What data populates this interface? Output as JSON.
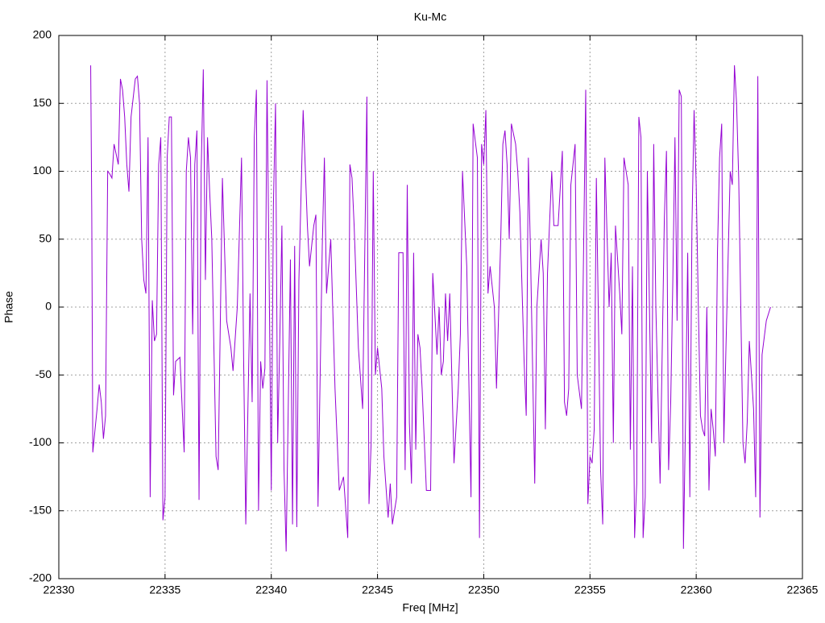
{
  "chart_data": {
    "type": "line",
    "title": "Ku-Mc",
    "x_label": "Freq [MHz]",
    "y_label": "Phase",
    "xlim": [
      22330,
      22365
    ],
    "xticks": [
      22330,
      22335,
      22340,
      22345,
      22350,
      22355,
      22360,
      22365
    ],
    "ylim": [
      -200,
      200
    ],
    "yticks": [
      -200,
      -150,
      -100,
      -50,
      0,
      50,
      100,
      150,
      200
    ],
    "grid": true,
    "series": [
      {
        "color": "#9400d3",
        "x": [
          22331.5,
          22331.55,
          22331.6,
          22331.8,
          22331.9,
          22332.0,
          22332.1,
          22332.2,
          22332.3,
          22332.4,
          22332.5,
          22332.6,
          22332.8,
          22332.9,
          22333.0,
          22333.1,
          22333.2,
          22333.3,
          22333.4,
          22333.6,
          22333.7,
          22333.8,
          22333.9,
          22334.0,
          22334.1,
          22334.2,
          22334.3,
          22334.4,
          22334.5,
          22334.6,
          22334.7,
          22334.8,
          22334.9,
          22335.0,
          22335.1,
          22335.2,
          22335.3,
          22335.4,
          22335.5,
          22335.7,
          22335.9,
          22336.0,
          22336.1,
          22336.2,
          22336.3,
          22336.4,
          22336.5,
          22336.6,
          22336.7,
          22336.8,
          22336.9,
          22337.0,
          22337.1,
          22337.2,
          22337.4,
          22337.5,
          22337.7,
          22337.9,
          22338.1,
          22338.2,
          22338.4,
          22338.6,
          22338.7,
          22338.8,
          22339.0,
          22339.1,
          22339.2,
          22339.3,
          22339.4,
          22339.5,
          22339.6,
          22339.7,
          22339.8,
          22339.9,
          22340.0,
          22340.1,
          22340.2,
          22340.3,
          22340.4,
          22340.5,
          22340.6,
          22340.7,
          22340.9,
          22341.0,
          22341.1,
          22341.2,
          22341.3,
          22341.5,
          22341.7,
          22341.8,
          22342.0,
          22342.1,
          22342.2,
          22342.4,
          22342.5,
          22342.6,
          22342.8,
          22343.0,
          22343.2,
          22343.4,
          22343.6,
          22343.7,
          22343.8,
          22343.9,
          22344.1,
          22344.3,
          22344.5,
          22344.6,
          22344.7,
          22344.8,
          22344.9,
          22345.0,
          22345.2,
          22345.3,
          22345.5,
          22345.6,
          22345.7,
          22345.8,
          22345.9,
          22346.0,
          22346.2,
          22346.3,
          22346.4,
          22346.5,
          22346.6,
          22346.7,
          22346.8,
          22346.9,
          22347.0,
          22347.1,
          22347.3,
          22347.5,
          22347.6,
          22347.8,
          22347.9,
          22348.0,
          22348.1,
          22348.2,
          22348.3,
          22348.4,
          22348.6,
          22348.8,
          22348.9,
          22349.0,
          22349.2,
          22349.4,
          22349.5,
          22349.7,
          22349.8,
          22349.9,
          22350.0,
          22350.1,
          22350.2,
          22350.3,
          22350.5,
          22350.6,
          22350.8,
          22350.9,
          22351.0,
          22351.1,
          22351.2,
          22351.3,
          22351.5,
          22351.6,
          22351.7,
          22351.9,
          22352.0,
          22352.1,
          22352.2,
          22352.4,
          22352.5,
          22352.7,
          22352.8,
          22352.9,
          22353.0,
          22353.2,
          22353.3,
          22353.5,
          22353.7,
          22353.8,
          22353.9,
          22354.0,
          22354.1,
          22354.3,
          22354.4,
          22354.6,
          22354.8,
          22354.9,
          22355.0,
          22355.1,
          22355.2,
          22355.3,
          22355.5,
          22355.6,
          22355.7,
          22355.9,
          22356.0,
          22356.1,
          22356.2,
          22356.4,
          22356.5,
          22356.6,
          22356.8,
          22356.9,
          22357.0,
          22357.1,
          22357.2,
          22357.3,
          22357.4,
          22357.5,
          22357.6,
          22357.7,
          22357.9,
          22358.0,
          22358.1,
          22358.3,
          22358.5,
          22358.6,
          22358.7,
          22358.8,
          22358.9,
          22359.0,
          22359.1,
          22359.2,
          22359.3,
          22359.4,
          22359.5,
          22359.6,
          22359.7,
          22359.8,
          22359.9,
          22360.0,
          22360.1,
          22360.2,
          22360.3,
          22360.4,
          22360.5,
          22360.6,
          22360.7,
          22360.8,
          22360.9,
          22361.0,
          22361.1,
          22361.2,
          22361.3,
          22361.4,
          22361.6,
          22361.7,
          22361.8,
          22361.9,
          22362.0,
          22362.2,
          22362.3,
          22362.4,
          22362.5,
          22362.7,
          22362.8,
          22362.9,
          22363.0,
          22363.1,
          22363.3,
          22363.5
        ],
        "values": [
          178,
          70,
          -107,
          -75,
          -57,
          -70,
          -97,
          -80,
          100,
          98,
          95,
          120,
          105,
          168,
          160,
          140,
          105,
          85,
          140,
          168,
          170,
          150,
          50,
          20,
          10,
          125,
          -140,
          5,
          -25,
          -20,
          105,
          125,
          -157,
          -140,
          110,
          140,
          140,
          -65,
          -40,
          -37,
          -107,
          100,
          125,
          110,
          -20,
          105,
          130,
          -142,
          100,
          175,
          20,
          125,
          85,
          50,
          -110,
          -120,
          95,
          -10,
          -30,
          -47,
          0,
          110,
          -40,
          -160,
          10,
          -70,
          125,
          160,
          -150,
          -40,
          -60,
          -45,
          167,
          20,
          -135,
          75,
          150,
          -100,
          -25,
          60,
          -120,
          -180,
          35,
          -160,
          45,
          -162,
          20,
          145,
          60,
          30,
          60,
          68,
          -147,
          45,
          110,
          10,
          50,
          -60,
          -135,
          -125,
          -170,
          105,
          95,
          60,
          -30,
          -75,
          155,
          -145,
          -100,
          100,
          -50,
          -30,
          -60,
          -110,
          -155,
          -130,
          -160,
          -150,
          -140,
          40,
          40,
          -120,
          90,
          -85,
          -130,
          40,
          -105,
          -20,
          -30,
          -60,
          -135,
          -135,
          25,
          -35,
          0,
          -50,
          -40,
          10,
          -25,
          10,
          -115,
          -60,
          -20,
          100,
          30,
          -140,
          135,
          110,
          -170,
          120,
          105,
          145,
          10,
          30,
          0,
          -60,
          50,
          120,
          130,
          105,
          50,
          135,
          120,
          100,
          70,
          -40,
          -80,
          110,
          40,
          -130,
          0,
          50,
          25,
          -90,
          25,
          100,
          60,
          60,
          115,
          -70,
          -80,
          -60,
          90,
          120,
          -50,
          -75,
          160,
          -145,
          -110,
          -115,
          -90,
          95,
          -120,
          -160,
          110,
          0,
          40,
          -100,
          60,
          10,
          -20,
          110,
          90,
          -105,
          30,
          -170,
          -130,
          140,
          125,
          -170,
          -140,
          100,
          -100,
          120,
          0,
          -130,
          65,
          115,
          -120,
          -70,
          20,
          125,
          -10,
          160,
          155,
          -178,
          -80,
          40,
          -140,
          60,
          145,
          90,
          0,
          -80,
          -90,
          -95,
          0,
          -135,
          -75,
          -90,
          -110,
          40,
          110,
          135,
          -100,
          -30,
          100,
          90,
          178,
          150,
          95,
          -100,
          -115,
          -85,
          -25,
          -75,
          -140,
          170,
          -155,
          -35,
          -10,
          0
        ]
      }
    ]
  }
}
